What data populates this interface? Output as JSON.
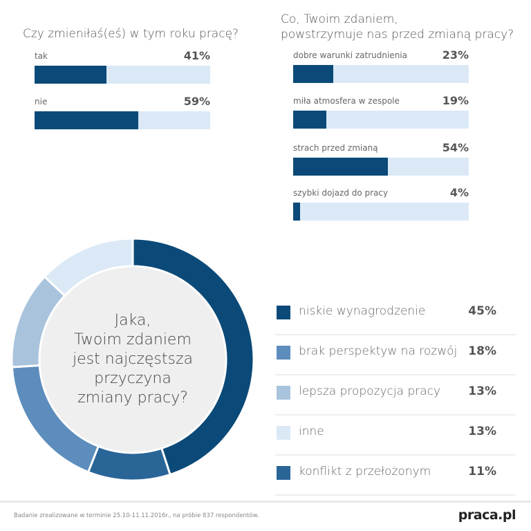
{
  "chart_data": [
    {
      "type": "bar",
      "title": "Czy zmieniłaś(eś) w tym roku pracę?",
      "categories": [
        "tak",
        "nie"
      ],
      "values": [
        41,
        59
      ],
      "labels": [
        "41%",
        "59%"
      ],
      "ylim": [
        0,
        100
      ]
    },
    {
      "type": "bar",
      "title": "Co, Twoim zdaniem, powstrzymuje nas przed zmianą pracy?",
      "title_lines": [
        "Co, Twoim zdaniem,",
        "powstrzymuje nas przed zmianą pracy?"
      ],
      "categories": [
        "dobre warunki zatrudnienia",
        "miła atmosfera w zespole",
        "strach przed zmianą",
        "szybki dojazd do pracy"
      ],
      "values": [
        23,
        19,
        54,
        4
      ],
      "labels": [
        "23%",
        "19%",
        "54%",
        "4%"
      ],
      "ylim": [
        0,
        100
      ]
    },
    {
      "type": "pie",
      "title": "Jaka, Twoim zdaniem jest najczęstsza przyczyna zmiany pracy?",
      "title_lines": [
        "Jaka,",
        "Twoim zdaniem",
        "jest najczęstsza",
        "przyczyna",
        "zmiany pracy?"
      ],
      "legend": [
        {
          "label": "niskie wynagrodzenie",
          "value": 45,
          "text": "45%",
          "color": "#0b4a78"
        },
        {
          "label": "brak perspektyw na rozwój",
          "value": 18,
          "text": "18%",
          "color": "#5d8dbd"
        },
        {
          "label": "lepsza propozycja pracy",
          "value": 13,
          "text": "13%",
          "color": "#a9c3dc"
        },
        {
          "label": "inne",
          "value": 13,
          "text": "13%",
          "color": "#dbe9f6"
        },
        {
          "label": "konflikt z przełożonym",
          "value": 11,
          "text": "11%",
          "color": "#2a6598"
        }
      ],
      "slice_order": [
        0,
        4,
        1,
        2,
        3
      ],
      "legend_placement": "right"
    }
  ],
  "colors": {
    "fill": "#0b4a78",
    "track": "#dbe9f6",
    "center": "#efefef"
  },
  "footer": {
    "note": "Badanie zrealizowane w terminie 25.10-11.11.2016r., na próbie 837 respondentów.",
    "logo": "praca.pl"
  }
}
